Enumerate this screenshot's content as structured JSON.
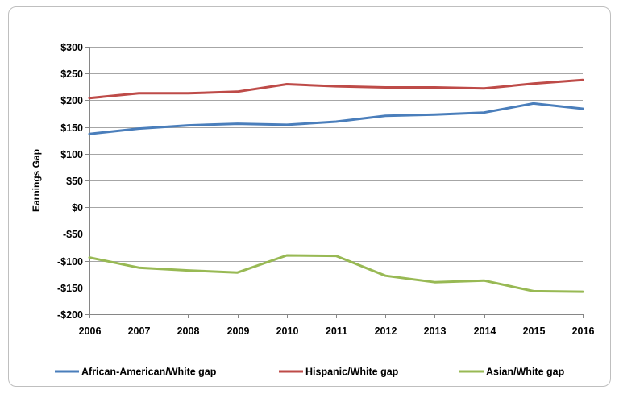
{
  "chart_data": {
    "type": "line",
    "title": "",
    "xlabel": "",
    "ylabel": "Earnings Gap",
    "x": [
      2006,
      2007,
      2008,
      2009,
      2010,
      2011,
      2012,
      2013,
      2014,
      2015,
      2016
    ],
    "ylim": [
      -200,
      300
    ],
    "y_ticks": [
      300,
      250,
      200,
      150,
      100,
      50,
      0,
      -50,
      -100,
      -150,
      -200
    ],
    "y_tick_labels": [
      "$300",
      "$250",
      "$200",
      "$150",
      "$100",
      "$50",
      "$0",
      "-$50",
      "-$100",
      "-$150",
      "-$200"
    ],
    "grid": true,
    "legend_position": "bottom",
    "series": [
      {
        "name": "African-American/White gap",
        "color": "#4a7ebb",
        "values": [
          137,
          147,
          153,
          156,
          154,
          160,
          171,
          173,
          177,
          194,
          184
        ]
      },
      {
        "name": "Hispanic/White gap",
        "color": "#be4b48",
        "values": [
          204,
          213,
          213,
          216,
          230,
          226,
          224,
          224,
          222,
          231,
          238
        ]
      },
      {
        "name": "Asian/White gap",
        "color": "#98b954",
        "values": [
          -94,
          -113,
          -118,
          -122,
          -90,
          -91,
          -128,
          -140,
          -137,
          -157,
          -158
        ]
      }
    ]
  }
}
